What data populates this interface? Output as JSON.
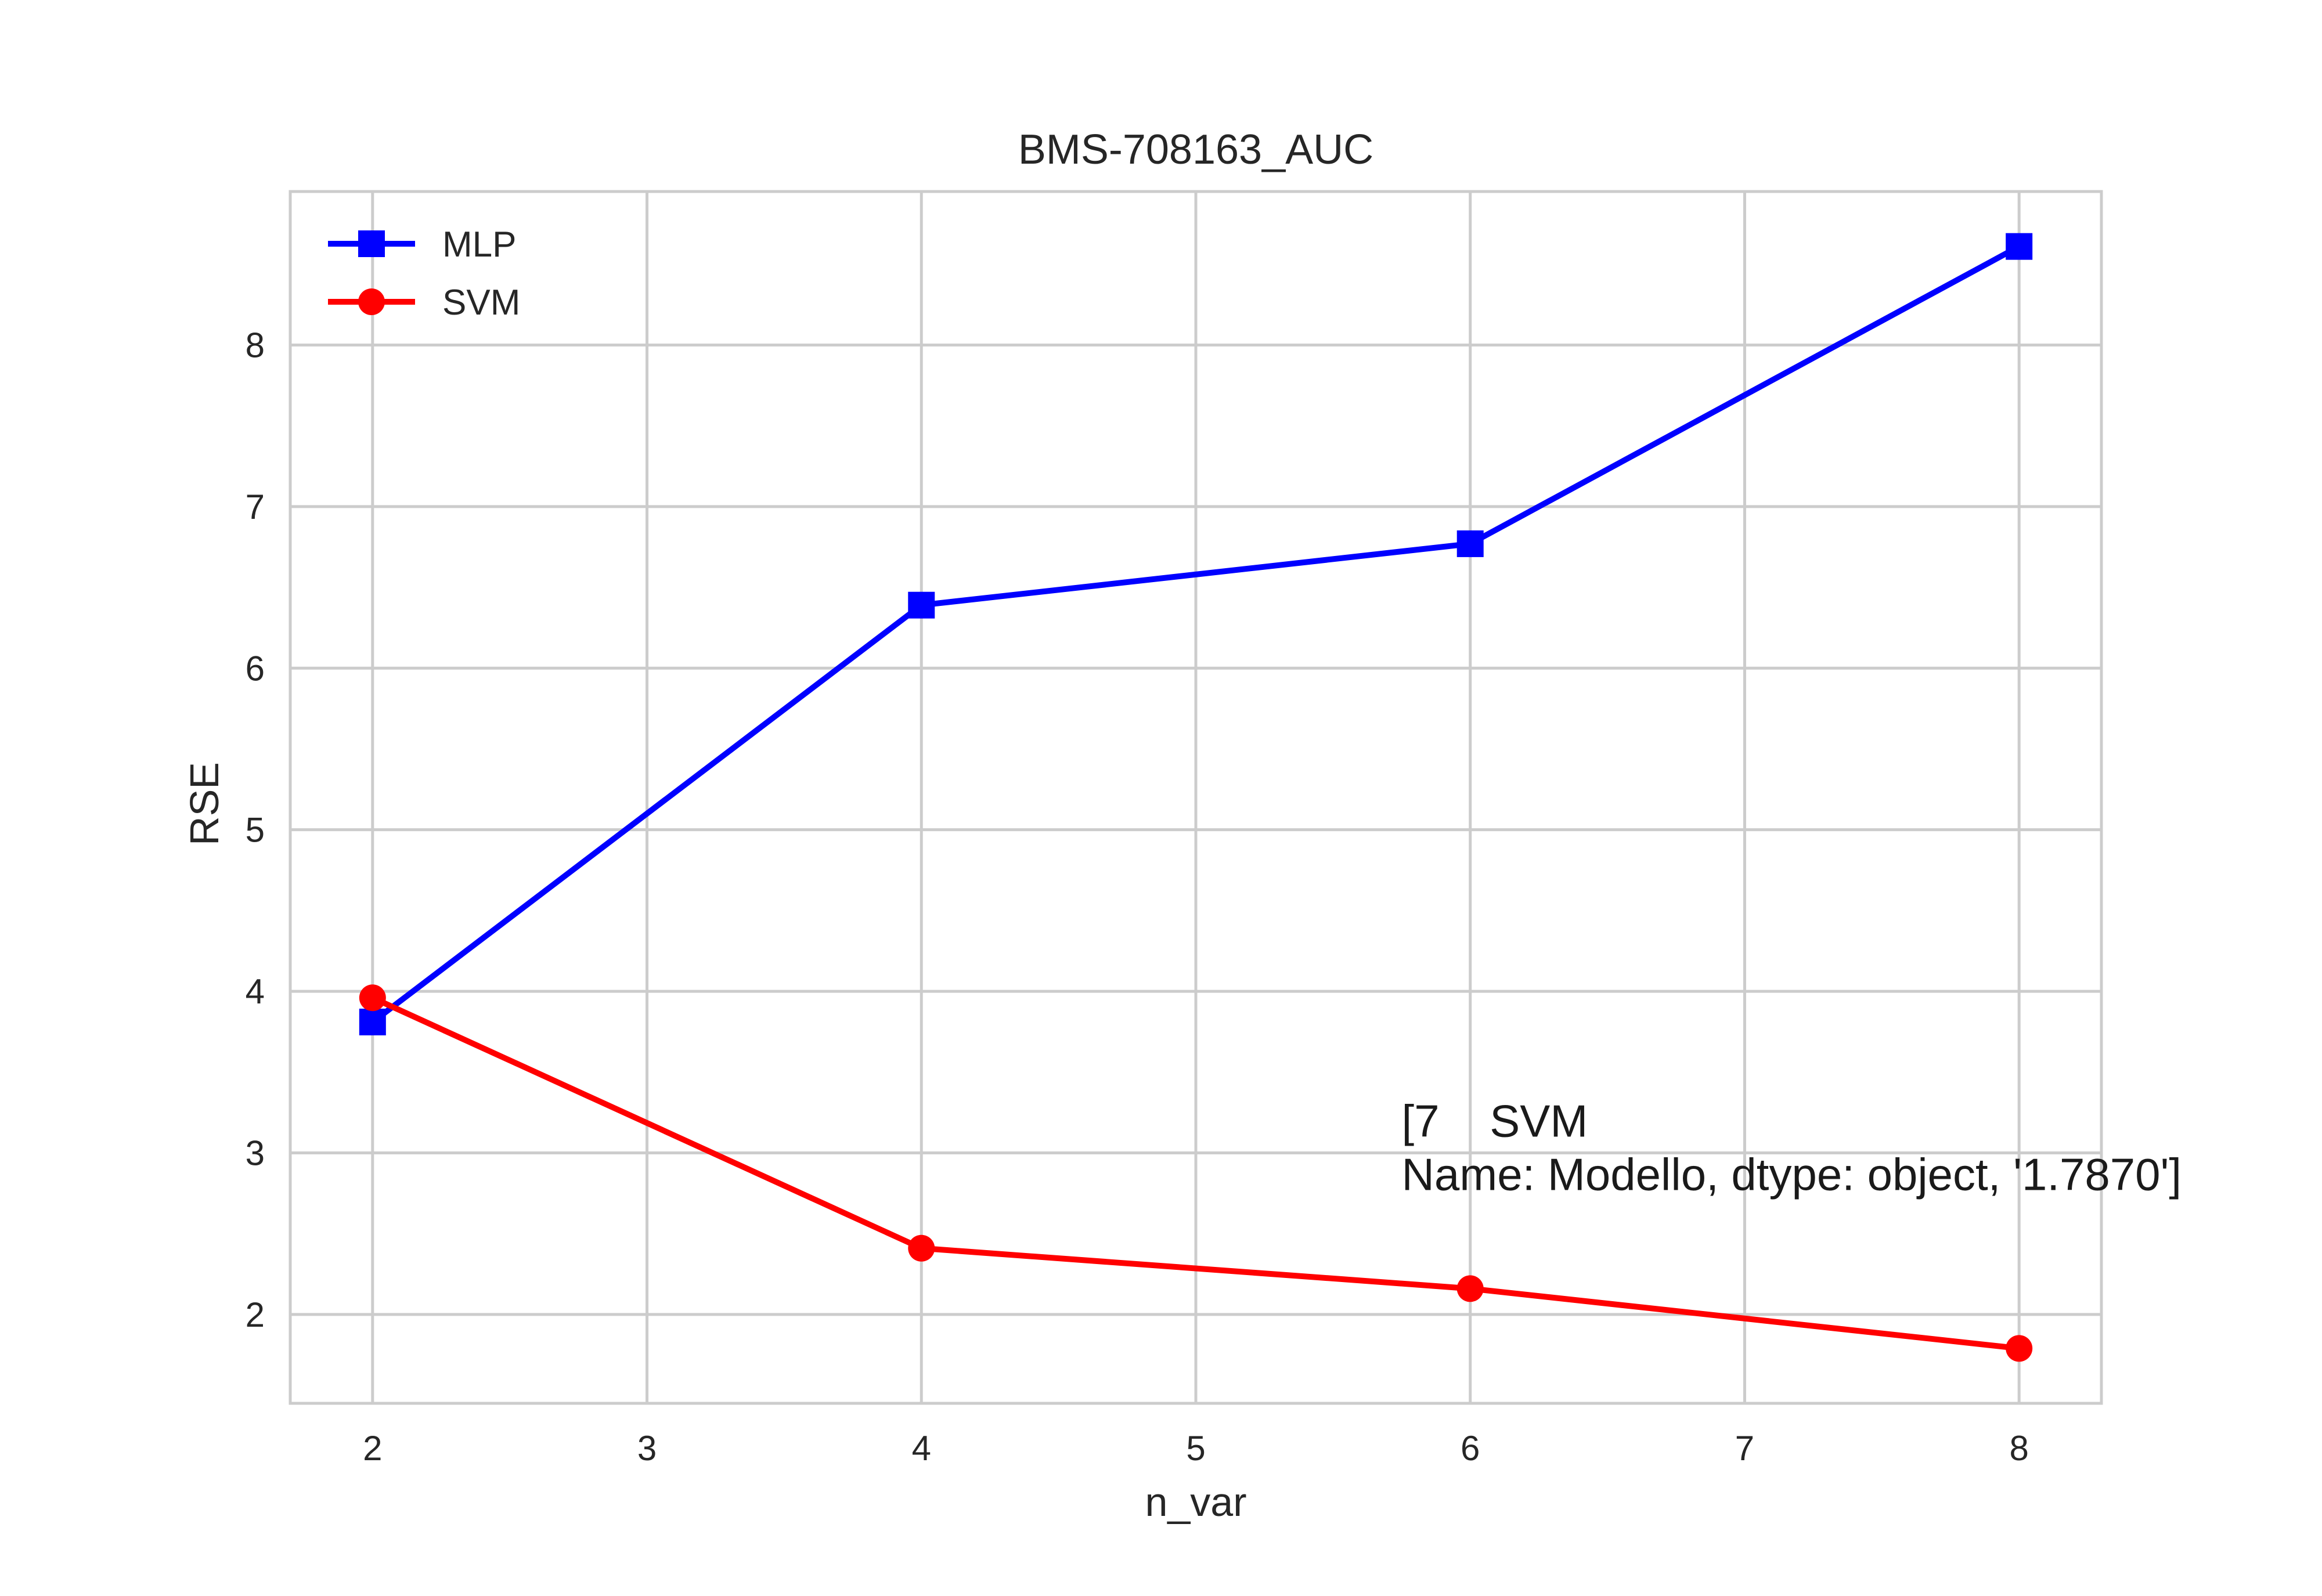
{
  "chart_data": {
    "type": "line",
    "title": "BMS-708163_AUC",
    "xlabel": "n_var",
    "ylabel": "RSE",
    "xlim": [
      1.7,
      8.3
    ],
    "ylim": [
      1.45,
      8.95
    ],
    "xticks": [
      2,
      3,
      4,
      5,
      6,
      7,
      8
    ],
    "yticks": [
      2,
      3,
      4,
      5,
      6,
      7,
      8
    ],
    "x": [
      2,
      4,
      6,
      8
    ],
    "series": [
      {
        "name": "MLP",
        "values": [
          3.81,
          6.39,
          6.77,
          8.61
        ],
        "color": "#0000ff",
        "marker": "square"
      },
      {
        "name": "SVM",
        "values": [
          3.96,
          2.41,
          2.16,
          1.79
        ],
        "color": "#ff0000",
        "marker": "circle"
      }
    ],
    "grid": true,
    "legend_position": "top-left",
    "annotation": {
      "lines": [
        "[7    SVM",
        "Name: Modello, dtype: object, '1.7870']"
      ],
      "x": 5.75,
      "y": 3.1
    }
  }
}
